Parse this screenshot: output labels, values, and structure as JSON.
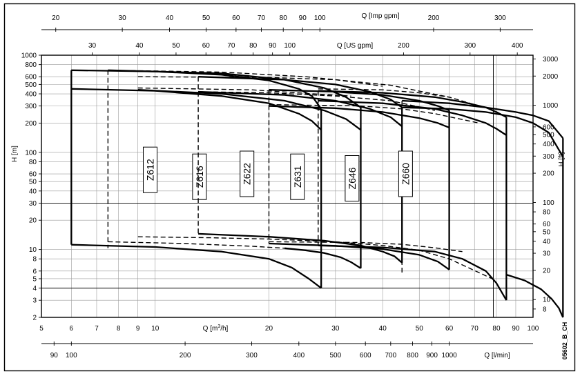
{
  "chart_data": {
    "type": "line",
    "code": "05602_B_CH",
    "axes": {
      "x_main": {
        "label_pre": "Q [m",
        "label_sup": "3",
        "label_post": "/h]",
        "scale": "log",
        "range": [
          5,
          100
        ],
        "ticks": [
          "5",
          "6",
          "7",
          "8",
          "9",
          "10",
          "20",
          "30",
          "40",
          "50",
          "60",
          "70",
          "80",
          "90",
          "100"
        ]
      },
      "x_lmin": {
        "label": "Q [l/min]",
        "ticks": [
          90,
          100,
          200,
          300,
          400,
          500,
          600,
          700,
          800,
          900,
          1000
        ]
      },
      "x_imp": {
        "label": "Q [Imp gpm]",
        "ticks": [
          20,
          30,
          40,
          50,
          60,
          70,
          80,
          90,
          100,
          200,
          300
        ]
      },
      "x_us": {
        "label": "Q [US gpm]",
        "ticks": [
          30,
          40,
          50,
          60,
          70,
          80,
          90,
          100,
          200,
          300,
          400
        ]
      },
      "y_left": {
        "label": "H [m]",
        "scale": "log",
        "range": [
          2,
          1000
        ],
        "ticks": [
          "2",
          "3",
          "4",
          "5",
          "6",
          "8",
          "10",
          "20",
          "30",
          "40",
          "50",
          "60",
          "80",
          "100",
          "200",
          "300",
          "400",
          "500",
          "600",
          "800",
          "1000"
        ]
      },
      "y_right": {
        "label": "H [ft]",
        "ticks": [
          "8",
          "10",
          "20",
          "30",
          "40",
          "50",
          "60",
          "80",
          "100",
          "200",
          "300",
          "400",
          "500",
          "600",
          "1000",
          "2000",
          "3000"
        ]
      }
    },
    "series": [
      {
        "name": "Z612",
        "label_at": [
          9.7,
          66
        ],
        "qmin": 6,
        "qmax": 27.5,
        "upper_solid": [
          [
            6,
            700
          ],
          [
            10,
            680
          ],
          [
            15,
            630
          ],
          [
            20,
            550
          ],
          [
            24,
            450
          ],
          [
            26,
            380
          ],
          [
            27.5,
            280
          ]
        ],
        "mid_solid": [
          [
            6,
            450
          ],
          [
            10,
            430
          ],
          [
            15,
            380
          ],
          [
            20,
            320
          ],
          [
            24,
            250
          ],
          [
            26,
            210
          ],
          [
            27.5,
            170
          ]
        ],
        "lower_solid": [
          [
            6,
            11.2
          ],
          [
            10,
            10.6
          ],
          [
            15,
            9.5
          ],
          [
            20,
            8.0
          ],
          [
            23,
            6.5
          ],
          [
            25.5,
            5.0
          ],
          [
            27.5,
            4.0
          ]
        ],
        "dash_upper": [
          [
            7.5,
            700
          ],
          [
            15,
            670
          ],
          [
            25,
            600
          ],
          [
            30,
            560
          ],
          [
            40,
            480
          ]
        ],
        "dash_mid": [
          [
            9,
            460
          ],
          [
            18,
            440
          ],
          [
            25,
            405
          ],
          [
            33,
            380
          ]
        ],
        "dash_lower": [
          [
            7.5,
            12
          ],
          [
            12,
            11.5
          ],
          [
            18,
            10.8
          ],
          [
            22,
            10.3
          ]
        ]
      },
      {
        "name": "Z616",
        "label_at": [
          13.1,
          56
        ],
        "qmin": 7.5,
        "qmax": 35,
        "upper_solid": [
          [
            7.5,
            700
          ],
          [
            15,
            650
          ],
          [
            22,
            560
          ],
          [
            28,
            460
          ],
          [
            32,
            370
          ],
          [
            35,
            290
          ]
        ],
        "mid_solid": [
          [
            9,
            440
          ],
          [
            15,
            400
          ],
          [
            22,
            340
          ],
          [
            28,
            270
          ],
          [
            32,
            220
          ],
          [
            35,
            170
          ]
        ],
        "lower_solid": [
          [
            22,
            10.3
          ],
          [
            25,
            9.8
          ],
          [
            28,
            9.2
          ],
          [
            31,
            8.3
          ],
          [
            33,
            7.4
          ],
          [
            35,
            6.4
          ]
        ],
        "dash_upper": [
          [
            9,
            600
          ],
          [
            20,
            590
          ],
          [
            30,
            560
          ],
          [
            42,
            490
          ],
          [
            60,
            370
          ]
        ],
        "dash_mid": [
          [
            13,
            420
          ],
          [
            20,
            410
          ],
          [
            30,
            380
          ],
          [
            42,
            340
          ],
          [
            55,
            270
          ]
        ],
        "dash_lower": [
          [
            9,
            13.5
          ],
          [
            14,
            13.2
          ],
          [
            20,
            12.8
          ],
          [
            30,
            12.0
          ],
          [
            40,
            11.0
          ],
          [
            50,
            9.8
          ],
          [
            60,
            8.0
          ],
          [
            78,
            5.0
          ]
        ]
      },
      {
        "name": "Z622",
        "label_at": [
          17.5,
          60
        ],
        "qmin": 13,
        "qmax": 45,
        "upper_solid": [
          [
            13,
            600
          ],
          [
            22,
            560
          ],
          [
            30,
            500
          ],
          [
            37,
            420
          ],
          [
            42,
            350
          ],
          [
            45,
            290
          ]
        ],
        "mid_solid": [
          [
            13,
            420
          ],
          [
            22,
            390
          ],
          [
            30,
            340
          ],
          [
            37,
            280
          ],
          [
            42,
            230
          ],
          [
            45,
            185
          ]
        ],
        "lower_solid": [
          [
            13,
            14.5
          ],
          [
            20,
            13.5
          ],
          [
            28,
            12.3
          ],
          [
            35,
            11.0
          ],
          [
            40,
            9.5
          ],
          [
            43,
            8.5
          ],
          [
            45,
            7.3
          ]
        ]
      },
      {
        "name": "Z631",
        "label_at": [
          23.8,
          56
        ],
        "qmin": 20,
        "qmax": 60,
        "upper_solid": [
          [
            20,
            440
          ],
          [
            30,
            420
          ],
          [
            40,
            390
          ],
          [
            50,
            340
          ],
          [
            56,
            300
          ],
          [
            60,
            270
          ]
        ],
        "mid_solid": [
          [
            20,
            300
          ],
          [
            30,
            285
          ],
          [
            40,
            260
          ],
          [
            50,
            225
          ],
          [
            56,
            200
          ],
          [
            60,
            180
          ]
        ],
        "lower_solid": [
          [
            20,
            11.5
          ],
          [
            30,
            10.9
          ],
          [
            40,
            10.1
          ],
          [
            50,
            8.8
          ],
          [
            56,
            7.5
          ],
          [
            60,
            6.2
          ]
        ],
        "dash_upper": [
          [
            27,
            450
          ],
          [
            40,
            440
          ],
          [
            50,
            410
          ],
          [
            60,
            370
          ],
          [
            72,
            300
          ]
        ],
        "dash_mid": [
          [
            20,
            310
          ],
          [
            35,
            300
          ],
          [
            45,
            280
          ],
          [
            55,
            250
          ],
          [
            72,
            200
          ]
        ],
        "dash_lower": [
          [
            20,
            12.0
          ],
          [
            35,
            11.8
          ],
          [
            45,
            11.3
          ],
          [
            55,
            10.4
          ],
          [
            65,
            9.5
          ]
        ]
      },
      {
        "name": "Z646",
        "label_at": [
          33.2,
          54
        ],
        "qmin": 27,
        "qmax": 85,
        "upper_solid": [
          [
            27,
            430
          ],
          [
            40,
            410
          ],
          [
            55,
            370
          ],
          [
            65,
            330
          ],
          [
            75,
            290
          ],
          [
            80,
            260
          ],
          [
            85,
            230
          ]
        ],
        "mid_solid": [
          [
            27,
            340
          ],
          [
            40,
            320
          ],
          [
            55,
            280
          ],
          [
            65,
            240
          ],
          [
            75,
            200
          ],
          [
            80,
            175
          ],
          [
            85,
            150
          ]
        ],
        "lower_solid": [
          [
            27,
            11
          ],
          [
            40,
            10.5
          ],
          [
            55,
            9.5
          ],
          [
            65,
            8.0
          ],
          [
            75,
            6.0
          ],
          [
            80,
            4.5
          ],
          [
            85,
            3.0
          ]
        ]
      },
      {
        "name": "Z660",
        "label_at": [
          46,
          60
        ],
        "qmin": 45,
        "qmax": 120,
        "upper_solid": [
          [
            45,
            340
          ],
          [
            60,
            320
          ],
          [
            75,
            290
          ],
          [
            90,
            260
          ],
          [
            100,
            240
          ],
          [
            110,
            210
          ],
          [
            120,
            140
          ]
        ],
        "mid_solid": [
          [
            45,
            290
          ],
          [
            60,
            280
          ],
          [
            75,
            260
          ],
          [
            90,
            230
          ],
          [
            100,
            200
          ],
          [
            110,
            160
          ],
          [
            120,
            90
          ]
        ],
        "lower_solid": [
          [
            85,
            5.5
          ],
          [
            95,
            4.8
          ],
          [
            105,
            3.9
          ],
          [
            112,
            3.1
          ],
          [
            117,
            2.5
          ],
          [
            120,
            2.0
          ]
        ]
      }
    ]
  }
}
